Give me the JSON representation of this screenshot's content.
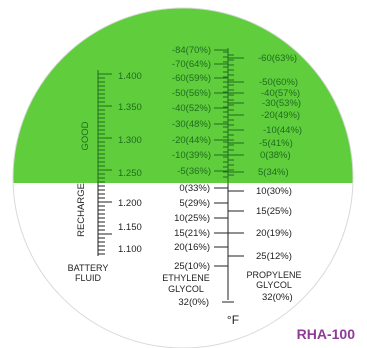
{
  "model": "RHA-100",
  "good_label": "GOOD",
  "recharge_label": "RECHARGE",
  "battery": {
    "header": [
      "BATTERY",
      "FLUID"
    ],
    "green_values": [
      "1.400",
      "1.350",
      "1.300",
      "1.250"
    ],
    "white_values": [
      "1.200",
      "1.150",
      "1.100"
    ]
  },
  "ethylene": {
    "header": [
      "ETHYLENE",
      "GLYCOL"
    ],
    "green_values": [
      "-84(70%)",
      "-70(64%)",
      "-60(59%)",
      "-50(56%)",
      "-40(52%)",
      "-30(48%)",
      "-20(44%)",
      "-10(39%)",
      "-5(36%)"
    ],
    "white_values": [
      "0(33%)",
      "5(29%)",
      "10(25%)",
      "15(21%)",
      "20(16%)",
      "25(10%)",
      "32(0%)"
    ]
  },
  "propylene": {
    "header": [
      "PROPYLENE",
      "GLYCOL"
    ],
    "green_values": [
      "-60(63%)",
      "-50(60%)",
      "-40(57%)",
      "-30(53%)",
      "-20(49%)",
      "-10(44%)",
      "-5(41%)",
      "0(38%)",
      "5(34%)"
    ],
    "white_values": [
      "10(30%)",
      "15(25%)",
      "20(19%)",
      "25(12%)",
      "32(0%)"
    ]
  },
  "unit": "°F",
  "colors": {
    "good_zone": "#5fcd3c",
    "text_green": "#1f6d1f",
    "text_dark": "#222222",
    "model": "#8e3b96"
  }
}
